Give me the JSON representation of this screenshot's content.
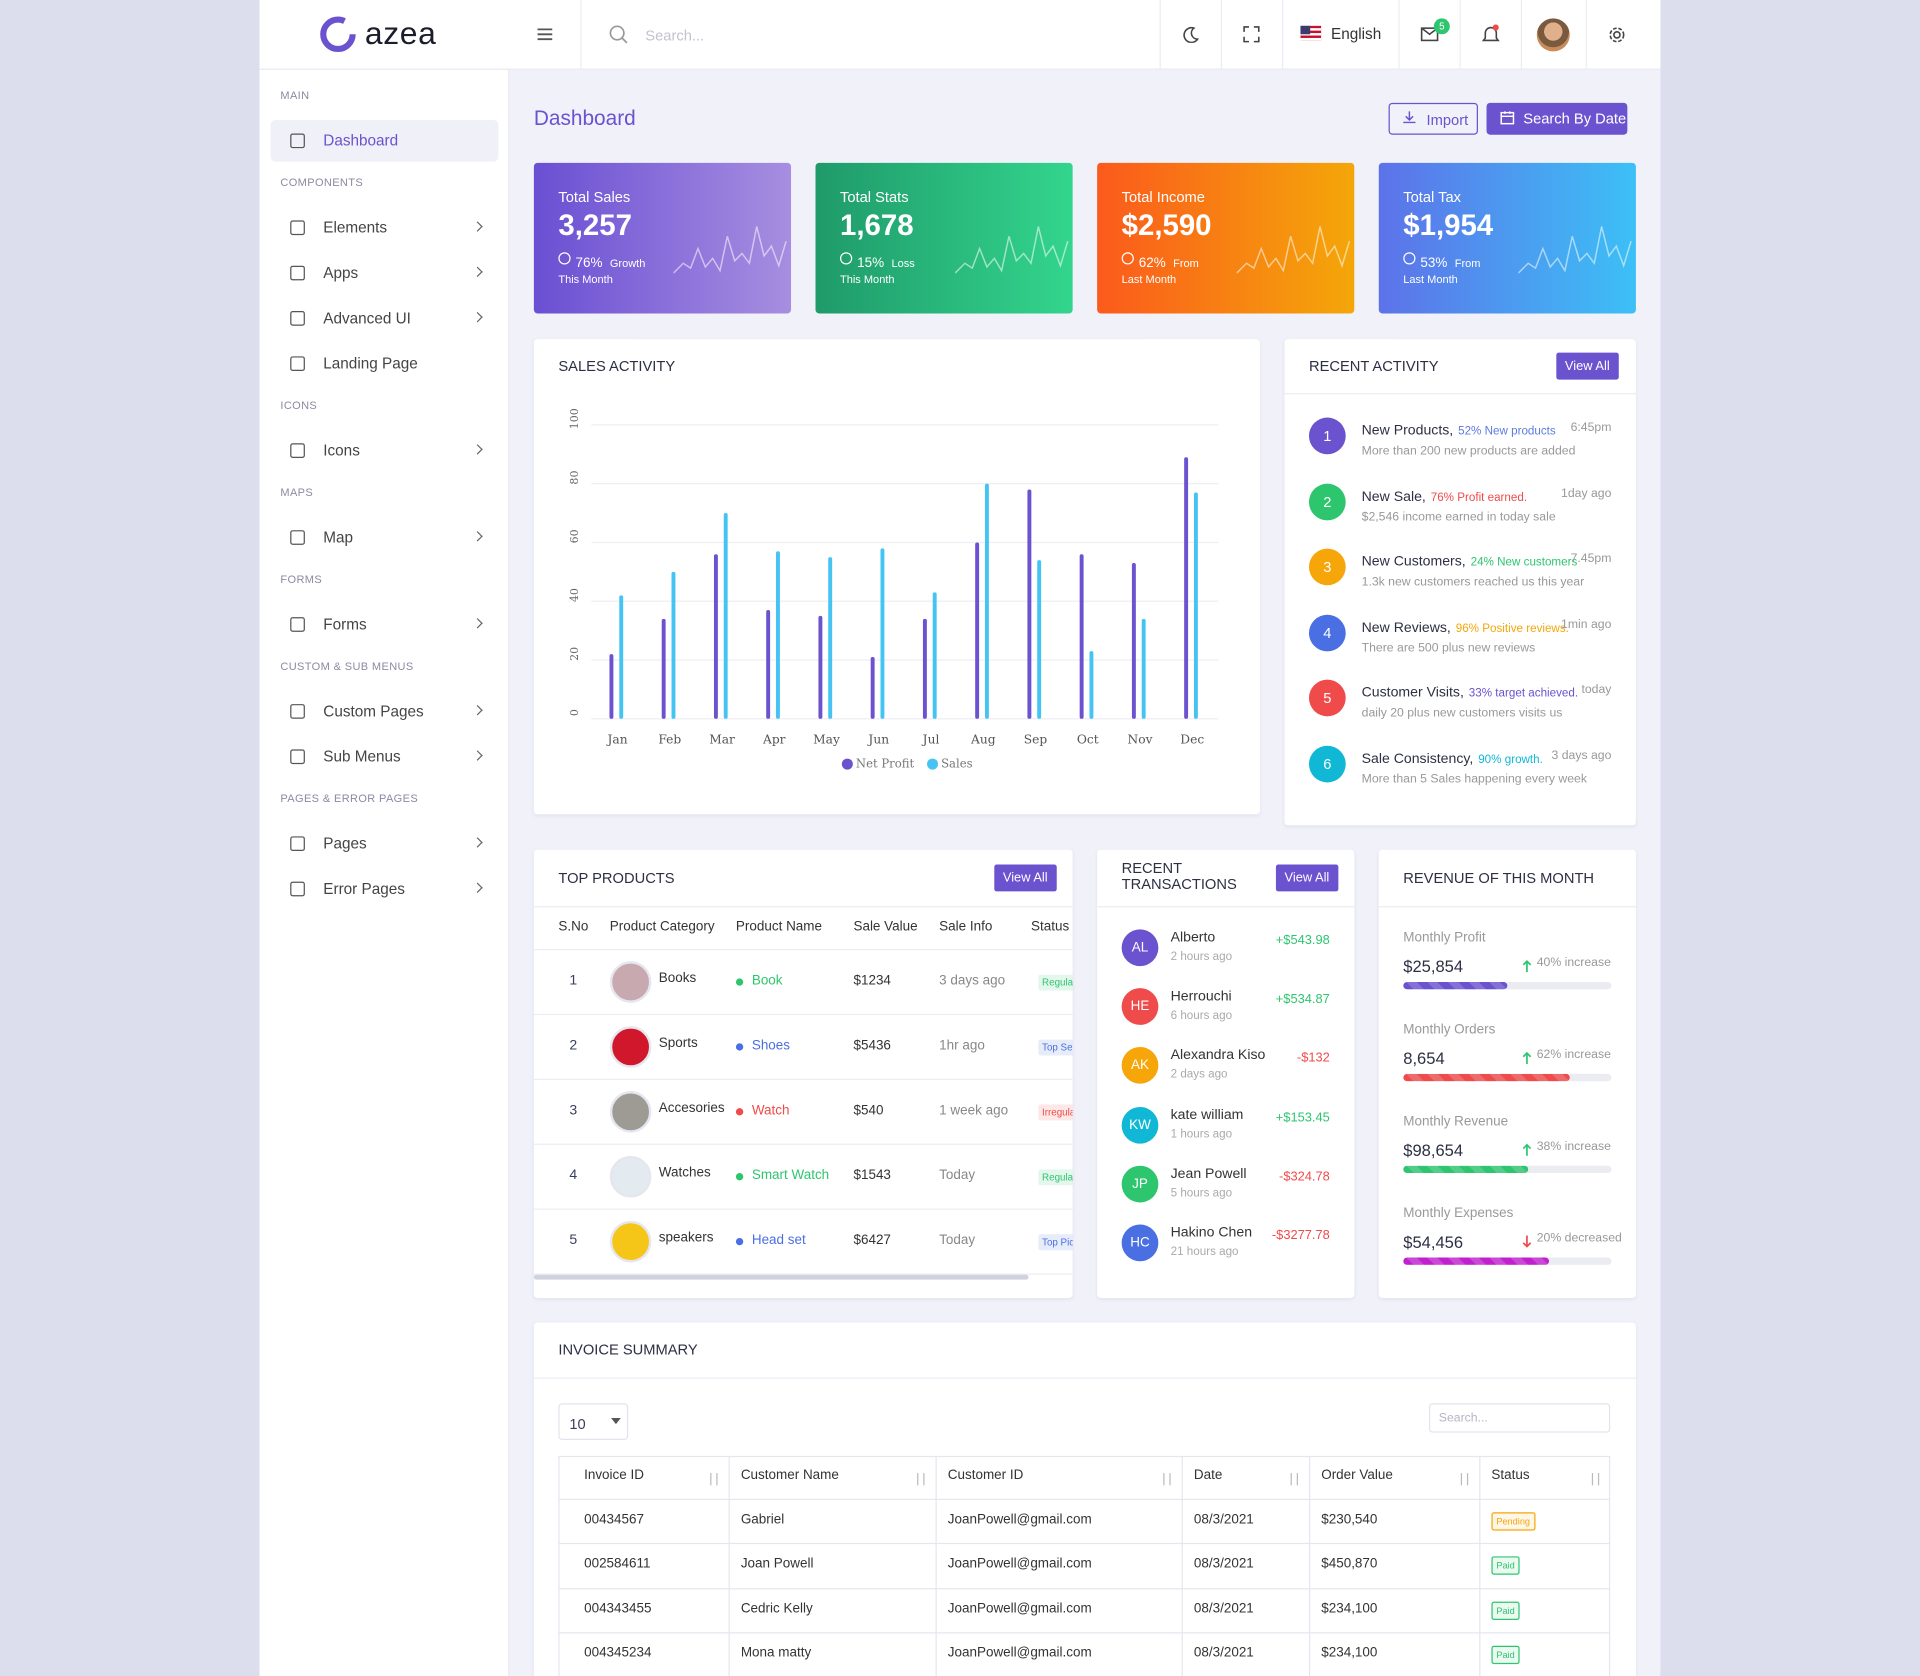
{
  "header": {
    "logo": "azea",
    "search_placeholder": "Search...",
    "language": "English",
    "mail_badge": "5"
  },
  "sidebar": [
    {
      "title": "MAIN",
      "items": [
        {
          "label": "Dashboard",
          "submenu": false,
          "active": true
        }
      ]
    },
    {
      "title": "COMPONENTS",
      "items": [
        {
          "label": "Elements",
          "submenu": true
        },
        {
          "label": "Apps",
          "submenu": true
        },
        {
          "label": "Advanced UI",
          "submenu": true
        },
        {
          "label": "Landing Page",
          "submenu": false
        }
      ]
    },
    {
      "title": "ICONS",
      "items": [
        {
          "label": "Icons",
          "submenu": true
        }
      ]
    },
    {
      "title": "MAPS",
      "items": [
        {
          "label": "Map",
          "submenu": true
        }
      ]
    },
    {
      "title": "FORMS",
      "items": [
        {
          "label": "Forms",
          "submenu": true
        }
      ]
    },
    {
      "title": "CUSTOM & SUB MENUS",
      "items": [
        {
          "label": "Custom Pages",
          "submenu": true
        },
        {
          "label": "Sub Menus",
          "submenu": true
        }
      ]
    },
    {
      "title": "PAGES & ERROR PAGES",
      "items": [
        {
          "label": "Pages",
          "submenu": true
        },
        {
          "label": "Error Pages",
          "submenu": true
        }
      ]
    }
  ],
  "page": {
    "title": "Dashboard",
    "import_button": "Import",
    "date_button": "Search By Date"
  },
  "stat_cards": [
    {
      "title": "Total Sales",
      "value": "3,257",
      "change": "76%",
      "change_label": "Growth",
      "period": "This Month",
      "colors": [
        "#6a4fd3",
        "#a78ee0"
      ]
    },
    {
      "title": "Total Stats",
      "value": "1,678",
      "change": "15%",
      "change_label": "Loss",
      "period": "This Month",
      "colors": [
        "#1f9a6a",
        "#33d58d"
      ]
    },
    {
      "title": "Total Income",
      "value": "$2,590",
      "change": "62%",
      "change_label": "From",
      "period": "Last Month",
      "colors": [
        "#fb5a1c",
        "#f4a709"
      ]
    },
    {
      "title": "Total Tax",
      "value": "$1,954",
      "change": "53%",
      "change_label": "From",
      "period": "Last Month",
      "colors": [
        "#5d72e9",
        "#3cc0f6"
      ]
    }
  ],
  "chart_data": {
    "type": "bar",
    "title": "SALES ACTIVITY",
    "categories": [
      "Jan",
      "Feb",
      "Mar",
      "Apr",
      "May",
      "Jun",
      "Jul",
      "Aug",
      "Sep",
      "Oct",
      "Nov",
      "Dec"
    ],
    "series": [
      {
        "name": "Net Profit",
        "color": "#6b52cf",
        "values": [
          22,
          34,
          56,
          37,
          35,
          21,
          34,
          60,
          78,
          56,
          53,
          89
        ]
      },
      {
        "name": "Sales",
        "color": "#45c4f4",
        "values": [
          42,
          50,
          70,
          57,
          55,
          58,
          43,
          80,
          54,
          23,
          34,
          77
        ]
      }
    ],
    "ylim": [
      0,
      100
    ],
    "yticks": [
      0,
      20,
      40,
      60,
      80,
      100
    ],
    "grid": true
  },
  "recent_activity": {
    "title": "RECENT ACTIVITY",
    "button": "View All",
    "items": [
      {
        "num": "1",
        "color": "#6b52cf",
        "title": "New Products,",
        "highlight": "52% New products",
        "highlight_color": "#5b7be0",
        "time": "6:45pm",
        "desc": "More than 200 new products are added"
      },
      {
        "num": "2",
        "color": "#2ec56f",
        "title": "New Sale,",
        "highlight": "76% Profit earned.",
        "highlight_color": "#ef4b4b",
        "time": "1day ago",
        "desc": "$2,546 income earned in today sale"
      },
      {
        "num": "3",
        "color": "#f6a609",
        "title": "New Customers,",
        "highlight": "24% New customers",
        "highlight_color": "#2ec56f",
        "time": "7.45pm",
        "desc": "1.3k new customers reached us this year"
      },
      {
        "num": "4",
        "color": "#4a6fe3",
        "title": "New Reviews,",
        "highlight": "96% Positive reviews.",
        "highlight_color": "#f6a609",
        "time": "1min ago",
        "desc": "There are 500 plus new reviews"
      },
      {
        "num": "5",
        "color": "#ef4b4b",
        "title": "Customer Visits,",
        "highlight": "33% target achieved.",
        "highlight_color": "#6b52cf",
        "time": "today",
        "desc": "daily 20 plus new customers visits us"
      },
      {
        "num": "6",
        "color": "#11b8d6",
        "title": "Sale Consistency,",
        "highlight": "90% growth.",
        "highlight_color": "#11b8d6",
        "time": "3 days ago",
        "desc": "More than 5 Sales happening every week"
      }
    ]
  },
  "top_products": {
    "title": "TOP PRODUCTS",
    "button": "View All",
    "headers": [
      "S.No",
      "Product Category",
      "Product Name",
      "Sale Value",
      "Sale Info",
      "Status"
    ],
    "rows": [
      {
        "sno": "1",
        "category": "Books",
        "name": "Book",
        "name_color": "#2ec56f",
        "value": "$1234",
        "info": "3 days ago",
        "status": "Regular",
        "status_color": "#2ec56f",
        "img": "#c9a9b0"
      },
      {
        "sno": "2",
        "category": "Sports",
        "name": "Shoes",
        "name_color": "#4a6fe3",
        "value": "$5436",
        "info": "1hr ago",
        "status": "Top Selling",
        "status_color": "#4a6fe3",
        "img": "#d0172b"
      },
      {
        "sno": "3",
        "category": "Accesories",
        "name": "Watch",
        "name_color": "#ef4b4b",
        "value": "$540",
        "info": "1 week ago",
        "status": "Irregular",
        "status_color": "#ef4b4b",
        "img": "#9e9a94"
      },
      {
        "sno": "4",
        "category": "Watches",
        "name": "Smart Watch",
        "name_color": "#2ec56f",
        "value": "$1543",
        "info": "Today",
        "status": "Regular",
        "status_color": "#2ec56f",
        "img": "#e3eaf0"
      },
      {
        "sno": "5",
        "category": "speakers",
        "name": "Head set",
        "name_color": "#4a6fe3",
        "value": "$6427",
        "info": "Today",
        "status": "Top Picks",
        "status_color": "#4a6fe3",
        "img": "#f5c518"
      }
    ]
  },
  "transactions": {
    "title": "RECENT TRANSACTIONS",
    "button": "View All",
    "rows": [
      {
        "initials": "AL",
        "avatar_color": "#6b52cf",
        "name": "Alberto",
        "time": "2 hours ago",
        "amount": "+$543.98",
        "amount_color": "#2ec56f"
      },
      {
        "initials": "HE",
        "avatar_color": "#ef4b4b",
        "name": "Herrouchi",
        "time": "6 hours ago",
        "amount": "+$534.87",
        "amount_color": "#2ec56f"
      },
      {
        "initials": "AK",
        "avatar_color": "#f6a609",
        "name": "Alexandra Kiso",
        "time": "2 days ago",
        "amount": "-$132",
        "amount_color": "#ef4b4b"
      },
      {
        "initials": "KW",
        "avatar_color": "#11b8d6",
        "name": "kate william",
        "time": "1 hours ago",
        "amount": "+$153.45",
        "amount_color": "#2ec56f"
      },
      {
        "initials": "JP",
        "avatar_color": "#2ec56f",
        "name": "Jean Powell",
        "time": "5 hours ago",
        "amount": "-$324.78",
        "amount_color": "#ef4b4b"
      },
      {
        "initials": "HC",
        "avatar_color": "#4a6fe3",
        "name": "Hakino Chen",
        "time": "21 hours ago",
        "amount": "-$3277.78",
        "amount_color": "#ef4b4b"
      }
    ]
  },
  "revenue": {
    "title": "REVENUE OF THIS MONTH",
    "items": [
      {
        "label": "Monthly Profit",
        "value": "$25,854",
        "change": "40% increase",
        "direction": "up",
        "progress": 50,
        "color": "#6b52cf"
      },
      {
        "label": "Monthly Orders",
        "value": "8,654",
        "change": "62% increase",
        "direction": "up",
        "progress": 80,
        "color": "#ef4b4b"
      },
      {
        "label": "Monthly Revenue",
        "value": "$98,654",
        "change": "38% increase",
        "direction": "up",
        "progress": 60,
        "color": "#2ec56f"
      },
      {
        "label": "Monthly Expenses",
        "value": "$54,456",
        "change": "20% decreased",
        "direction": "down",
        "progress": 70,
        "color": "#c21fcf"
      }
    ]
  },
  "invoice": {
    "title": "INVOICE SUMMARY",
    "page_size": "10",
    "search_placeholder": "Search...",
    "headers": [
      "Invoice ID",
      "Customer Name",
      "Customer ID",
      "Date",
      "Order Value",
      "Status"
    ],
    "rows": [
      [
        "00434567",
        "Gabriel",
        "JoanPowell@gmail.com",
        "08/3/2021",
        "$230,540",
        "Pending"
      ],
      [
        "002584611",
        "Joan Powell",
        "JoanPowell@gmail.com",
        "08/3/2021",
        "$450,870",
        "Paid"
      ],
      [
        "004343455",
        "Cedric Kelly",
        "JoanPowell@gmail.com",
        "08/3/2021",
        "$234,100",
        "Paid"
      ],
      [
        "004345234",
        "Mona matty",
        "JoanPowell@gmail.com",
        "08/3/2021",
        "$234,100",
        "Paid"
      ]
    ],
    "status_colors": {
      "Pending": "#f6a609",
      "Paid": "#2ec56f"
    }
  }
}
